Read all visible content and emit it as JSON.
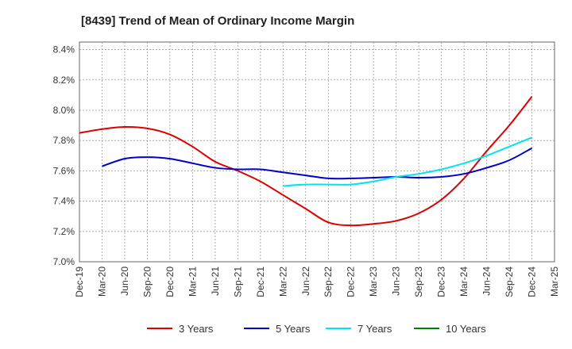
{
  "chart_data": {
    "type": "line",
    "title": "[8439]  Trend of Mean of Ordinary Income Margin",
    "xlabel": "",
    "ylabel": "",
    "x_ticks": [
      "Dec-19",
      "Mar-20",
      "Jun-20",
      "Sep-20",
      "Dec-20",
      "Mar-21",
      "Jun-21",
      "Sep-21",
      "Dec-21",
      "Mar-22",
      "Jun-22",
      "Sep-22",
      "Dec-22",
      "Mar-23",
      "Jun-23",
      "Sep-23",
      "Dec-23",
      "Mar-24",
      "Jun-24",
      "Sep-24",
      "Dec-24",
      "Mar-25"
    ],
    "y_ticks": [
      "7.0%",
      "7.2%",
      "7.4%",
      "7.6%",
      "7.8%",
      "8.0%",
      "8.2%",
      "8.4%"
    ],
    "ylim": [
      7.0,
      8.45
    ],
    "y_unit": "%",
    "grid": true,
    "legend_position": "bottom",
    "series": [
      {
        "name": "3 Years",
        "color": "#dd0000",
        "values": [
          7.85,
          7.875,
          7.89,
          7.88,
          7.84,
          7.76,
          7.66,
          7.6,
          7.53,
          7.44,
          7.35,
          7.26,
          7.24,
          7.25,
          7.27,
          7.32,
          7.41,
          7.55,
          7.73,
          7.9,
          8.09,
          null
        ]
      },
      {
        "name": "5 Years",
        "color": "#0000cc",
        "values": [
          null,
          7.63,
          7.68,
          7.69,
          7.68,
          7.65,
          7.62,
          7.61,
          7.61,
          7.59,
          7.57,
          7.55,
          7.55,
          7.555,
          7.56,
          7.555,
          7.56,
          7.58,
          7.62,
          7.67,
          7.75,
          null
        ]
      },
      {
        "name": "7 Years",
        "color": "#00e5ee",
        "values": [
          null,
          null,
          null,
          null,
          null,
          null,
          null,
          null,
          null,
          7.5,
          7.51,
          7.51,
          7.51,
          7.53,
          7.56,
          7.58,
          7.61,
          7.65,
          7.7,
          7.76,
          7.82,
          null
        ]
      },
      {
        "name": "10 Years",
        "color": "#008000",
        "values": [
          null,
          null,
          null,
          null,
          null,
          null,
          null,
          null,
          null,
          null,
          null,
          null,
          null,
          null,
          null,
          null,
          null,
          null,
          null,
          null,
          null,
          null
        ]
      }
    ]
  }
}
